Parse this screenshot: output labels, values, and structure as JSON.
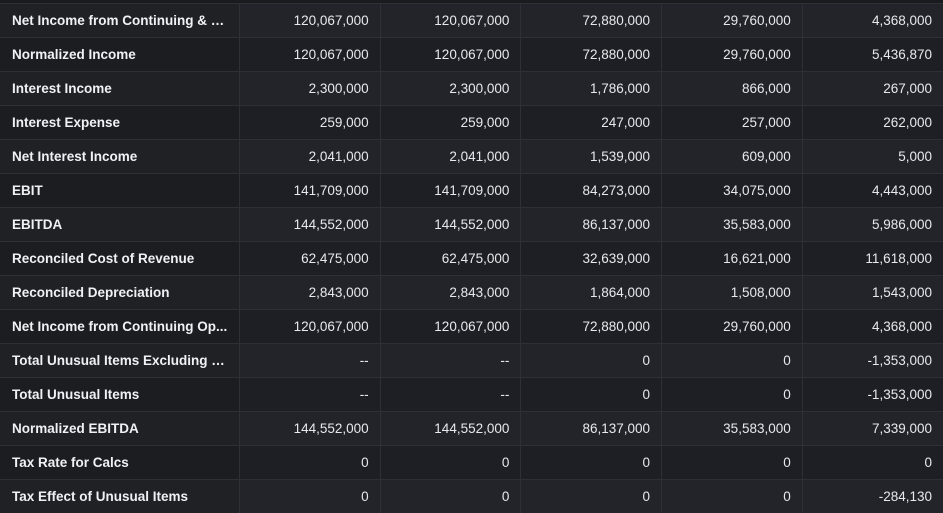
{
  "table": {
    "rows": [
      {
        "label": "Net Income from Continuing & D...",
        "values": [
          "120,067,000",
          "120,067,000",
          "72,880,000",
          "29,760,000",
          "4,368,000"
        ]
      },
      {
        "label": "Normalized Income",
        "values": [
          "120,067,000",
          "120,067,000",
          "72,880,000",
          "29,760,000",
          "5,436,870"
        ]
      },
      {
        "label": "Interest Income",
        "values": [
          "2,300,000",
          "2,300,000",
          "1,786,000",
          "866,000",
          "267,000"
        ]
      },
      {
        "label": "Interest Expense",
        "values": [
          "259,000",
          "259,000",
          "247,000",
          "257,000",
          "262,000"
        ]
      },
      {
        "label": "Net Interest Income",
        "values": [
          "2,041,000",
          "2,041,000",
          "1,539,000",
          "609,000",
          "5,000"
        ]
      },
      {
        "label": "EBIT",
        "values": [
          "141,709,000",
          "141,709,000",
          "84,273,000",
          "34,075,000",
          "4,443,000"
        ]
      },
      {
        "label": "EBITDA",
        "values": [
          "144,552,000",
          "144,552,000",
          "86,137,000",
          "35,583,000",
          "5,986,000"
        ]
      },
      {
        "label": "Reconciled Cost of Revenue",
        "values": [
          "62,475,000",
          "62,475,000",
          "32,639,000",
          "16,621,000",
          "11,618,000"
        ]
      },
      {
        "label": "Reconciled Depreciation",
        "values": [
          "2,843,000",
          "2,843,000",
          "1,864,000",
          "1,508,000",
          "1,543,000"
        ]
      },
      {
        "label": "Net Income from Continuing Op...",
        "values": [
          "120,067,000",
          "120,067,000",
          "72,880,000",
          "29,760,000",
          "4,368,000"
        ]
      },
      {
        "label": "Total Unusual Items Excluding G...",
        "values": [
          "--",
          "--",
          "0",
          "0",
          "-1,353,000"
        ]
      },
      {
        "label": "Total Unusual Items",
        "values": [
          "--",
          "--",
          "0",
          "0",
          "-1,353,000"
        ]
      },
      {
        "label": "Normalized EBITDA",
        "values": [
          "144,552,000",
          "144,552,000",
          "86,137,000",
          "35,583,000",
          "7,339,000"
        ]
      },
      {
        "label": "Tax Rate for Calcs",
        "values": [
          "0",
          "0",
          "0",
          "0",
          "0"
        ]
      },
      {
        "label": "Tax Effect of Unusual Items",
        "values": [
          "0",
          "0",
          "0",
          "0",
          "-284,130"
        ]
      }
    ]
  }
}
